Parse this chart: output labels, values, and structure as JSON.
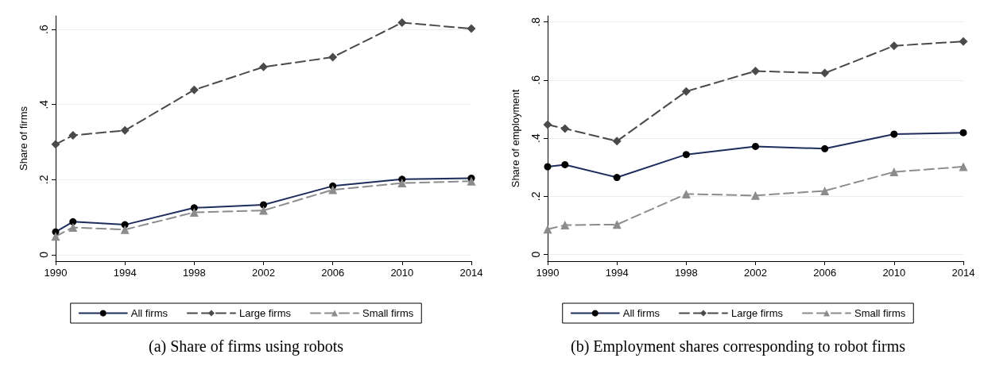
{
  "chart_data": [
    {
      "type": "line",
      "title": "(a) Share of firms using robots",
      "ylabel": "Share of firms",
      "x": [
        1990,
        1991,
        1994,
        1998,
        2002,
        2006,
        2010,
        2014
      ],
      "xlim": [
        1990,
        2014
      ],
      "xticks": [
        1990,
        1994,
        1998,
        2002,
        2006,
        2010,
        2014
      ],
      "ylim": [
        -0.017,
        0.636
      ],
      "yticks": [
        {
          "value": 0,
          "label": "0"
        },
        {
          "value": 0.2,
          "label": ".2"
        },
        {
          "value": 0.4,
          "label": ".4"
        },
        {
          "value": 0.6,
          "label": ".6"
        }
      ],
      "grid": "y",
      "legend": "bottom",
      "series": [
        {
          "name": "All firms",
          "color": "#1f2d5c",
          "marker": "circle",
          "line_style": "solid",
          "values": [
            0.061,
            0.088,
            0.08,
            0.125,
            0.133,
            0.183,
            0.201,
            0.204
          ]
        },
        {
          "name": "Large firms",
          "color": "#4a4a4a",
          "marker": "diamond",
          "line_style": "dashed",
          "values": [
            0.294,
            0.318,
            0.331,
            0.439,
            0.5,
            0.526,
            0.618,
            0.602
          ]
        },
        {
          "name": "Small firms",
          "color": "#8c8c8c",
          "marker": "triangle",
          "line_style": "dashed",
          "values": [
            0.049,
            0.073,
            0.067,
            0.113,
            0.118,
            0.173,
            0.191,
            0.196
          ]
        }
      ]
    },
    {
      "type": "line",
      "title": "(b) Employment shares corresponding to robot firms",
      "ylabel": "Share of employment",
      "x": [
        1990,
        1991,
        1994,
        1998,
        2002,
        2006,
        2010,
        2014
      ],
      "xlim": [
        1990,
        2014
      ],
      "xticks": [
        1990,
        1994,
        1998,
        2002,
        2006,
        2010,
        2014
      ],
      "ylim": [
        -0.023,
        0.821
      ],
      "yticks": [
        {
          "value": 0,
          "label": "0"
        },
        {
          "value": 0.2,
          "label": ".2"
        },
        {
          "value": 0.4,
          "label": ".4"
        },
        {
          "value": 0.6,
          "label": ".6"
        },
        {
          "value": 0.8,
          "label": ".8"
        }
      ],
      "grid": "y",
      "legend": "bottom",
      "series": [
        {
          "name": "All firms",
          "color": "#1f2d5c",
          "marker": "circle",
          "line_style": "solid",
          "values": [
            0.302,
            0.309,
            0.265,
            0.344,
            0.372,
            0.364,
            0.414,
            0.419
          ]
        },
        {
          "name": "Large firms",
          "color": "#4a4a4a",
          "marker": "diamond",
          "line_style": "dashed",
          "values": [
            0.447,
            0.433,
            0.39,
            0.561,
            0.631,
            0.624,
            0.718,
            0.733
          ]
        },
        {
          "name": "Small firms",
          "color": "#8c8c8c",
          "marker": "triangle",
          "line_style": "dashed",
          "values": [
            0.087,
            0.101,
            0.103,
            0.208,
            0.203,
            0.219,
            0.284,
            0.302
          ]
        }
      ]
    }
  ]
}
